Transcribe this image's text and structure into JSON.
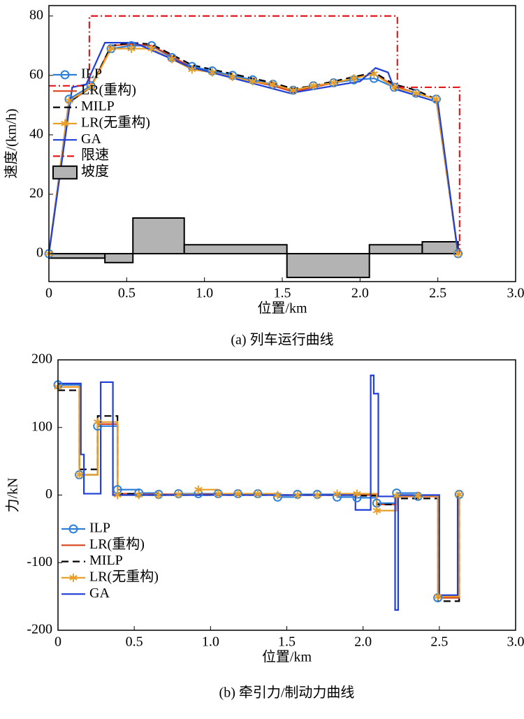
{
  "chart_data": [
    {
      "type": "line",
      "caption": "(a) 列车运行曲线",
      "xlabel": "位置/km",
      "ylabel": "速度/(km/h)",
      "xlim": [
        0,
        3
      ],
      "ylim": [
        -9.4,
        83.5
      ],
      "xticks": [
        0,
        0.5,
        {
          "value": 1,
          "label": "1.0"
        },
        1.5,
        {
          "value": 2,
          "label": "2.0"
        },
        2.5,
        {
          "value": 3,
          "label": "3.0"
        }
      ],
      "yticks": [
        0,
        20,
        40,
        60,
        80
      ],
      "legend": "center left",
      "series": [
        {
          "name": "ILP",
          "color": "#2f7fd8",
          "marker": "o",
          "dash": "solid",
          "x": [
            0,
            0.13,
            0.27,
            0.4,
            0.53,
            0.66,
            0.79,
            0.92,
            1.05,
            1.18,
            1.31,
            1.44,
            1.57,
            1.7,
            1.83,
            1.96,
            2.09,
            2.22,
            2.36,
            2.49,
            2.63
          ],
          "values": [
            0,
            52,
            56.5,
            69,
            70,
            70,
            66,
            63,
            61.5,
            60,
            58.5,
            57,
            55,
            56.5,
            57.5,
            58.5,
            59,
            56,
            54,
            52,
            0
          ]
        },
        {
          "name": "LR(重构)",
          "color": "#d9441c",
          "marker": null,
          "dash": "solid",
          "x": [
            0,
            0.13,
            0.27,
            0.4,
            0.53,
            0.66,
            0.79,
            0.92,
            1.05,
            1.18,
            1.31,
            1.44,
            1.57,
            1.7,
            1.83,
            1.96,
            2.09,
            2.22,
            2.36,
            2.49,
            2.63
          ],
          "values": [
            0,
            51,
            56,
            70,
            70.5,
            70,
            66.5,
            62.5,
            61,
            59.5,
            58,
            56.5,
            54.5,
            56,
            57.5,
            59,
            60.5,
            56.5,
            54,
            52,
            0
          ]
        },
        {
          "name": "MILP",
          "color": "#000000",
          "marker": null,
          "dash": "dashed",
          "x": [
            0,
            0.13,
            0.27,
            0.4,
            0.53,
            0.66,
            0.79,
            0.92,
            1.05,
            1.18,
            1.31,
            1.44,
            1.57,
            1.7,
            1.83,
            1.96,
            2.09,
            2.22,
            2.36,
            2.49,
            2.63
          ],
          "values": [
            0,
            51,
            56,
            70,
            71,
            70.5,
            67,
            63.5,
            62,
            60.5,
            59,
            57.5,
            55.5,
            56.5,
            58,
            59.5,
            61,
            57,
            55,
            52,
            0
          ]
        },
        {
          "name": "LR(无重构)",
          "color": "#e8a02a",
          "marker": "*",
          "dash": "solid",
          "x": [
            0,
            0.13,
            0.27,
            0.4,
            0.53,
            0.66,
            0.79,
            0.92,
            1.05,
            1.18,
            1.31,
            1.44,
            1.57,
            1.7,
            1.83,
            1.96,
            2.09,
            2.22,
            2.36,
            2.49,
            2.63
          ],
          "values": [
            0,
            51.5,
            56,
            69,
            69,
            69,
            65.5,
            62,
            61,
            59.5,
            58,
            57,
            55,
            56.5,
            57.5,
            59,
            60.5,
            56,
            54,
            52,
            0
          ]
        },
        {
          "name": "GA",
          "color": "#1f3fd6",
          "marker": null,
          "dash": "solid",
          "x": [
            0,
            0.15,
            0.24,
            0.36,
            0.55,
            0.9,
            1.55,
            2.0,
            2.1,
            2.18,
            2.22,
            2.5,
            2.63
          ],
          "values": [
            0,
            56,
            57,
            71,
            71,
            63,
            54,
            58,
            62.5,
            61,
            55.5,
            51,
            0
          ]
        },
        {
          "name": "限速",
          "color": "#e31a1c",
          "marker": null,
          "dash": "dashdot",
          "x": [
            0,
            0.26,
            0.26,
            2.24,
            2.24,
            2.64,
            2.64
          ],
          "values": [
            56.5,
            56.5,
            80,
            80,
            56,
            56,
            0
          ]
        }
      ],
      "gradient": {
        "name": "坡度",
        "color": "#b3b3b3",
        "edges": [
          0,
          0.36,
          0.54,
          0.87,
          1.53,
          2.06,
          2.4,
          2.63
        ],
        "values": [
          -1.5,
          -3,
          12,
          3,
          -8,
          3,
          4
        ]
      }
    },
    {
      "type": "step",
      "caption": "(b) 牵引力/制动力曲线",
      "xlabel": "位置/km",
      "ylabel": "力/kN",
      "xlim": [
        0,
        3
      ],
      "ylim": [
        -200,
        200
      ],
      "xticks": [
        0,
        0.5,
        {
          "value": 1,
          "label": "1.0"
        },
        1.5,
        {
          "value": 2,
          "label": "2.0"
        },
        2.5,
        {
          "value": 3,
          "label": "3.0"
        }
      ],
      "yticks": [
        -200,
        -100,
        0,
        100,
        200
      ],
      "legend": "lower left",
      "series": [
        {
          "name": "ILP",
          "color": "#2f7fd8",
          "marker": "o",
          "dash": "solid",
          "x": [
            0,
            0.14,
            0.26,
            0.39,
            0.53,
            0.66,
            0.79,
            0.92,
            1.05,
            1.18,
            1.31,
            1.44,
            1.57,
            1.7,
            1.83,
            1.96,
            2.09,
            2.22,
            2.36,
            2.49,
            2.63
          ],
          "values": [
            163,
            30,
            102,
            8,
            3,
            1,
            2,
            2,
            2,
            2,
            2,
            -3,
            1,
            1,
            -3,
            -4,
            -12,
            3,
            -2,
            -152,
            1
          ]
        },
        {
          "name": "LR(重构)",
          "color": "#d9441c",
          "marker": null,
          "dash": "solid",
          "x": [
            0,
            0.14,
            0.26,
            0.39,
            0.53,
            0.66,
            0.79,
            0.92,
            1.05,
            1.18,
            1.31,
            1.44,
            1.57,
            1.7,
            1.83,
            1.96,
            2.09,
            2.22,
            2.36,
            2.49,
            2.63
          ],
          "values": [
            160,
            30,
            105,
            2,
            1,
            1,
            1,
            1,
            1,
            1,
            1,
            0,
            0,
            0,
            0,
            0,
            -14,
            -2,
            -2,
            -152,
            1
          ]
        },
        {
          "name": "MILP",
          "color": "#000000",
          "marker": null,
          "dash": "dashed",
          "x": [
            0,
            0.14,
            0.26,
            0.39,
            0.53,
            0.66,
            0.79,
            0.92,
            1.05,
            1.18,
            1.31,
            1.44,
            1.57,
            1.7,
            1.83,
            1.96,
            2.09,
            2.22,
            2.36,
            2.49,
            2.63
          ],
          "values": [
            155,
            38,
            117,
            2,
            0,
            0,
            0,
            0,
            0,
            0,
            0,
            0,
            0,
            0,
            0,
            -1,
            -14,
            -5,
            -5,
            -157,
            1
          ]
        },
        {
          "name": "LR(无重构)",
          "color": "#e8a02a",
          "marker": "*",
          "dash": "solid",
          "x": [
            0,
            0.14,
            0.26,
            0.39,
            0.53,
            0.66,
            0.79,
            0.92,
            1.05,
            1.18,
            1.31,
            1.44,
            1.57,
            1.7,
            1.83,
            1.96,
            2.09,
            2.22,
            2.36,
            2.49,
            2.63
          ],
          "values": [
            160,
            30,
            108,
            0,
            0,
            0,
            1,
            8,
            2,
            2,
            2,
            0,
            0,
            0,
            2,
            2,
            -23,
            -1,
            -1,
            -150,
            1
          ]
        },
        {
          "name": "GA",
          "color": "#1f3fd6",
          "marker": null,
          "dash": "solid",
          "x": [
            0,
            0.15,
            0.17,
            0.28,
            0.36,
            1.95,
            2.05,
            2.07,
            2.1,
            2.21,
            2.23,
            2.5,
            2.62,
            2.63
          ],
          "values": [
            165,
            60,
            2,
            167,
            0,
            -22,
            177,
            150,
            -2,
            -170,
            0,
            -148,
            0,
            0
          ]
        }
      ]
    }
  ]
}
